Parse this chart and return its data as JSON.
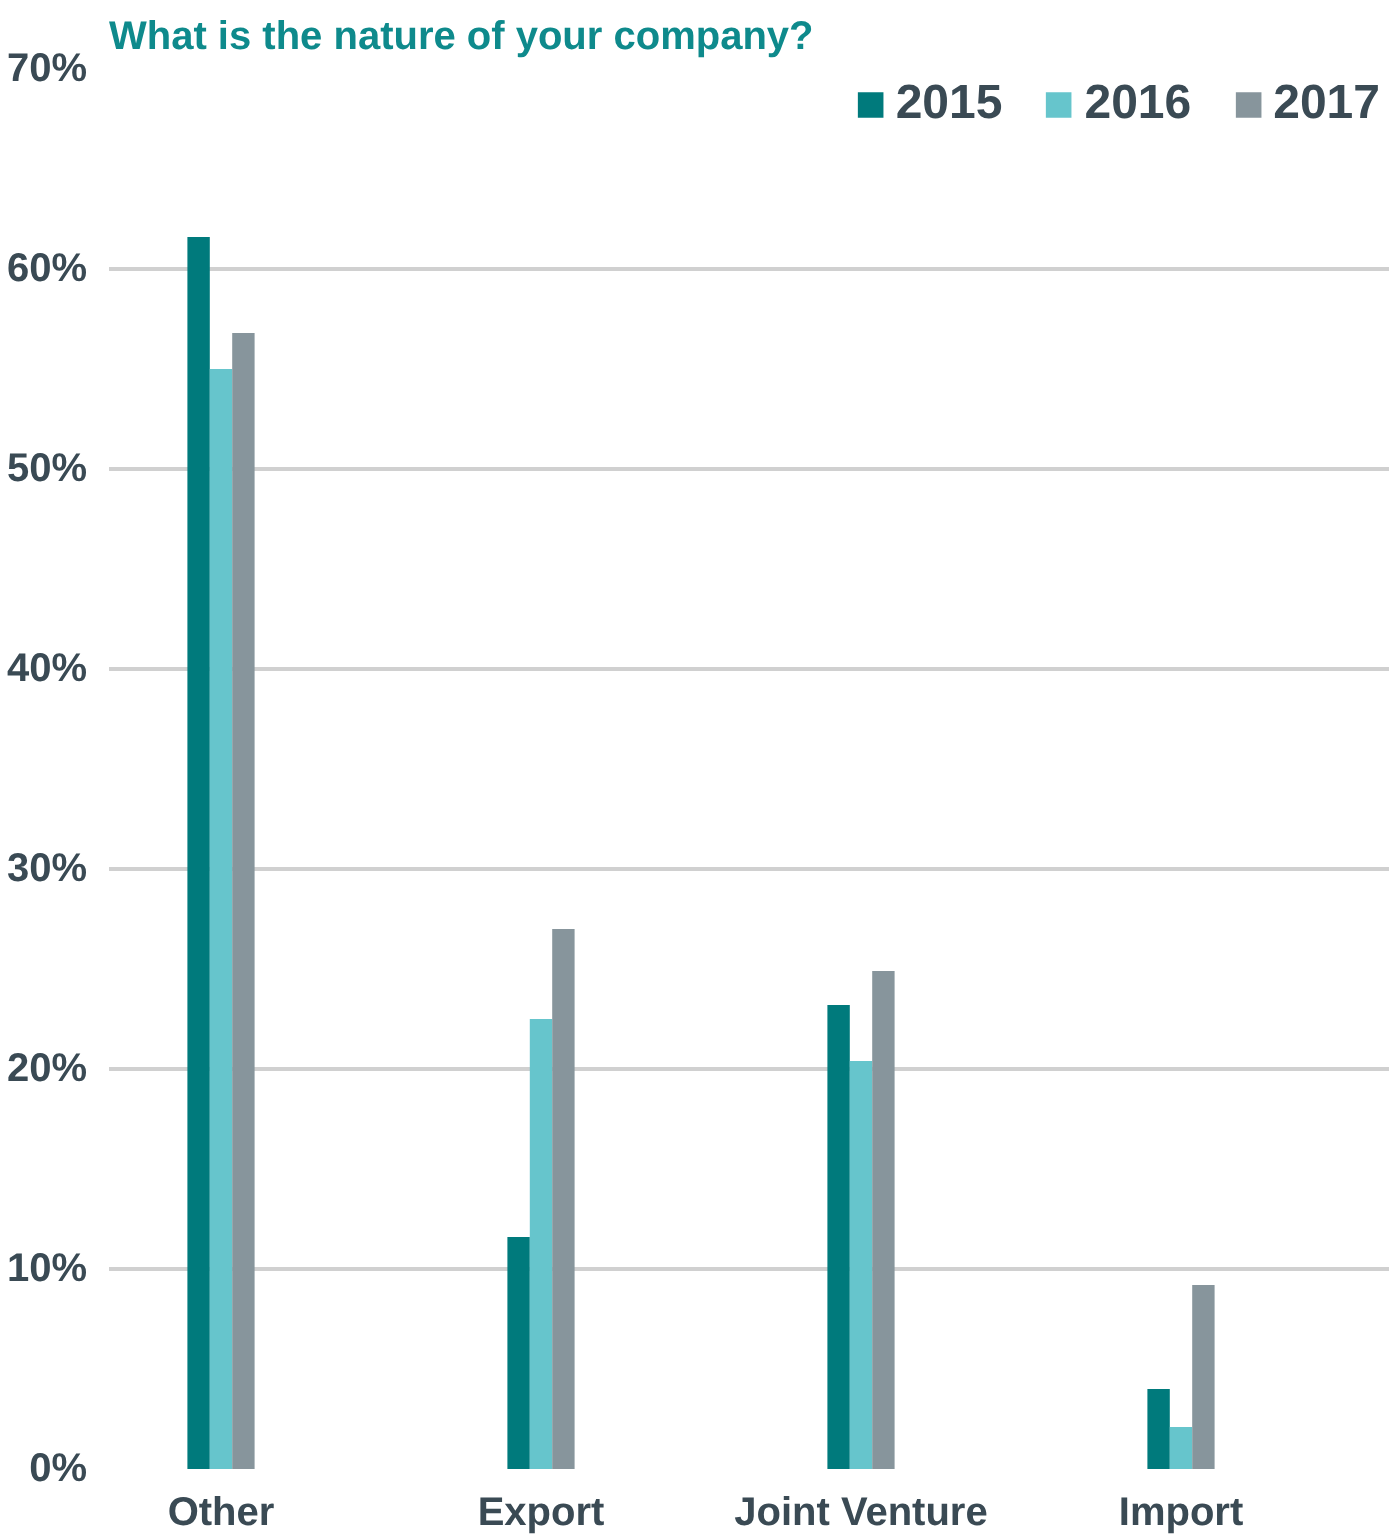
{
  "chart_data": {
    "type": "bar",
    "title": "What is the nature of your company?",
    "categories": [
      "Other",
      "Export",
      "Joint Venture",
      "Import"
    ],
    "series": [
      {
        "name": "2015",
        "color": "#007a7c",
        "values": [
          61.6,
          11.6,
          23.2,
          4.0
        ]
      },
      {
        "name": "2016",
        "color": "#66c5cc",
        "values": [
          55.0,
          22.5,
          20.4,
          2.1
        ]
      },
      {
        "name": "2017",
        "color": "#87959c",
        "values": [
          56.8,
          27.0,
          24.9,
          9.2
        ]
      }
    ],
    "ylim": [
      0,
      70
    ],
    "yticks": [
      {
        "value": 0,
        "label": "0%"
      },
      {
        "value": 10,
        "label": "10%"
      },
      {
        "value": 20,
        "label": "20%"
      },
      {
        "value": 30,
        "label": "30%"
      },
      {
        "value": 40,
        "label": "40%"
      },
      {
        "value": 50,
        "label": "50%"
      },
      {
        "value": 60,
        "label": "60%"
      },
      {
        "value": 70,
        "label": "70%"
      }
    ],
    "grid": "y",
    "legend": "top right"
  }
}
